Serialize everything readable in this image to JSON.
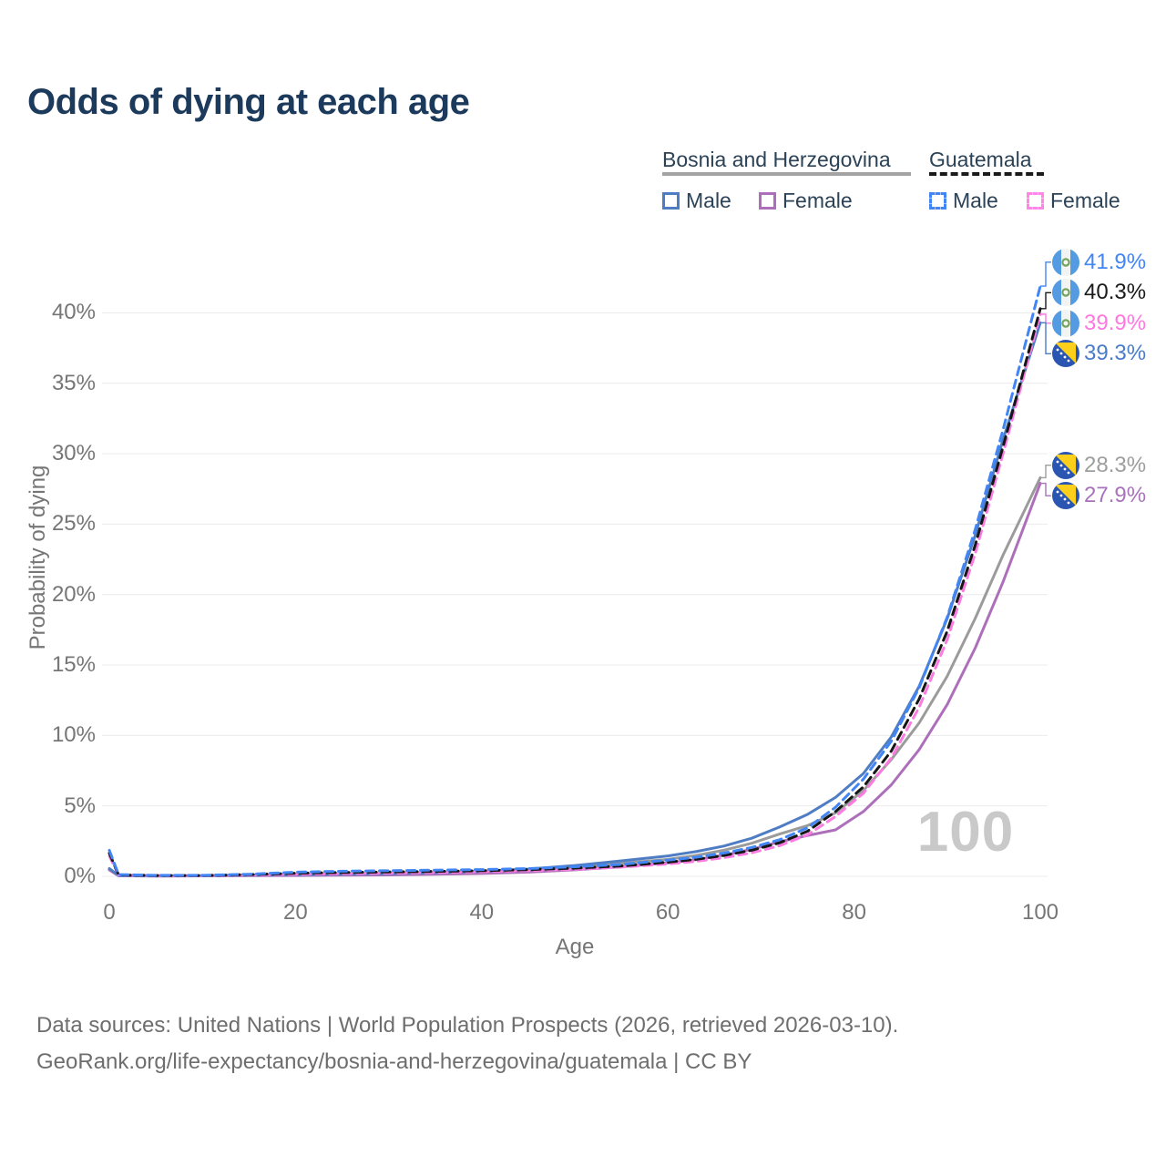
{
  "title": "Odds of dying at each age",
  "legend": {
    "groups": [
      {
        "name": "Bosnia and Herzegovina",
        "line_style": "solid",
        "line_color": "#a3a3a3",
        "items": [
          {
            "label": "Male",
            "color": "#4f7dc4",
            "dash": false
          },
          {
            "label": "Female",
            "color": "#ad6fba",
            "dash": false
          }
        ]
      },
      {
        "name": "Guatemala",
        "line_style": "dashed",
        "line_color": "#1a1a1a",
        "items": [
          {
            "label": "Male",
            "color": "#4285f4",
            "dash": true
          },
          {
            "label": "Female",
            "color": "#ff85e6",
            "dash": true
          }
        ]
      }
    ]
  },
  "watermark": "100",
  "footer": {
    "line1": "Data sources: United Nations | World Population Prospects (2026, retrieved 2026-03-10).",
    "line2": "GeoRank.org/life-expectancy/bosnia-and-herzegovina/guatemala | CC BY"
  },
  "chart_data": {
    "type": "line",
    "title": "Odds of dying at each age",
    "xlabel": "Age",
    "ylabel": "Probability of dying",
    "xlim": [
      0,
      100
    ],
    "ylim": [
      0,
      43
    ],
    "xticks": [
      0,
      20,
      40,
      60,
      80,
      100
    ],
    "yticks": [
      0,
      5,
      10,
      15,
      20,
      25,
      30,
      35,
      40
    ],
    "y_unit": "%",
    "grid": true,
    "legend_position": "top-right",
    "x": [
      0,
      1,
      5,
      10,
      15,
      20,
      25,
      30,
      35,
      40,
      45,
      50,
      55,
      60,
      63,
      66,
      69,
      72,
      75,
      78,
      81,
      84,
      87,
      90,
      93,
      96,
      100
    ],
    "series": [
      {
        "name": "Bosnia and Herzegovina — Both sexes",
        "country": "bosnia",
        "sex": "both",
        "color": "#9b9b9b",
        "label_color": "#9e9e9e",
        "dash": false,
        "end_label": "28.3%",
        "end_value": 28.3,
        "values": [
          0.5,
          0.045,
          0.025,
          0.035,
          0.06,
          0.1,
          0.12,
          0.15,
          0.2,
          0.28,
          0.41,
          0.62,
          0.92,
          1.2,
          1.48,
          1.85,
          2.35,
          3.0,
          3.6,
          4.5,
          6.1,
          8.3,
          10.9,
          14.2,
          18.3,
          22.8,
          28.3
        ]
      },
      {
        "name": "Bosnia and Herzegovina — Female",
        "country": "bosnia",
        "sex": "female",
        "color": "#ad6fba",
        "label_color": "#a873bb",
        "dash": false,
        "end_label": "27.9%",
        "end_value": 27.9,
        "values": [
          0.45,
          0.04,
          0.02,
          0.03,
          0.045,
          0.06,
          0.08,
          0.1,
          0.14,
          0.2,
          0.3,
          0.46,
          0.68,
          0.95,
          1.18,
          1.5,
          1.92,
          2.45,
          2.9,
          3.3,
          4.6,
          6.5,
          9.0,
          12.2,
          16.2,
          20.9,
          27.9
        ]
      },
      {
        "name": "Bosnia and Herzegovina — Male",
        "country": "bosnia",
        "sex": "male",
        "color": "#4f7dc4",
        "label_color": "#4a7cc9",
        "dash": false,
        "end_label": "39.3%",
        "end_value": 39.3,
        "values": [
          0.55,
          0.05,
          0.03,
          0.04,
          0.08,
          0.12,
          0.15,
          0.19,
          0.26,
          0.36,
          0.52,
          0.77,
          1.1,
          1.45,
          1.75,
          2.15,
          2.7,
          3.5,
          4.4,
          5.6,
          7.3,
          9.9,
          13.5,
          18.3,
          24.2,
          31.0,
          39.3
        ]
      },
      {
        "name": "Guatemala — Female",
        "country": "guatemala",
        "sex": "female",
        "color": "#fc7be0",
        "label_color": "#ff77df",
        "dash": true,
        "end_label": "39.9%",
        "end_value": 39.9,
        "values": [
          1.45,
          0.09,
          0.05,
          0.05,
          0.09,
          0.14,
          0.18,
          0.22,
          0.27,
          0.33,
          0.4,
          0.5,
          0.65,
          0.88,
          1.06,
          1.32,
          1.67,
          2.17,
          2.95,
          4.25,
          5.9,
          8.4,
          12.0,
          16.8,
          22.9,
          30.0,
          39.9
        ]
      },
      {
        "name": "Guatemala — Both sexes",
        "country": "guatemala",
        "sex": "both",
        "color": "#161616",
        "label_color": "#1a1a1a",
        "dash": true,
        "end_label": "40.3%",
        "end_value": 40.3,
        "values": [
          1.65,
          0.1,
          0.06,
          0.06,
          0.12,
          0.22,
          0.27,
          0.31,
          0.35,
          0.4,
          0.47,
          0.58,
          0.74,
          1.0,
          1.2,
          1.48,
          1.85,
          2.38,
          3.2,
          4.6,
          6.35,
          8.9,
          12.6,
          17.4,
          23.5,
          30.5,
          40.3
        ]
      },
      {
        "name": "Guatemala — Male",
        "country": "guatemala",
        "sex": "male",
        "color": "#4285f4",
        "label_color": "#4285f4",
        "dash": true,
        "end_label": "41.9%",
        "end_value": 41.9,
        "values": [
          1.85,
          0.12,
          0.07,
          0.07,
          0.15,
          0.3,
          0.36,
          0.4,
          0.44,
          0.48,
          0.55,
          0.68,
          0.85,
          1.15,
          1.35,
          1.65,
          2.05,
          2.6,
          3.45,
          4.9,
          6.9,
          9.6,
          13.4,
          18.4,
          24.6,
          31.7,
          41.9
        ]
      }
    ]
  }
}
